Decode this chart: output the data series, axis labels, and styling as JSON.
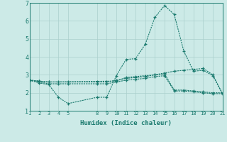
{
  "xlabel": "Humidex (Indice chaleur)",
  "bg_color": "#cceae7",
  "grid_color": "#aacfcc",
  "line_color": "#1a7a6e",
  "xlim": [
    1,
    21
  ],
  "ylim": [
    1,
    7
  ],
  "yticks": [
    1,
    2,
    3,
    4,
    5,
    6,
    7
  ],
  "xticks": [
    1,
    2,
    3,
    4,
    5,
    8,
    9,
    10,
    11,
    12,
    13,
    14,
    15,
    16,
    17,
    18,
    19,
    20,
    21
  ],
  "series": [
    {
      "x": [
        1,
        2,
        3,
        4,
        5,
        8,
        9,
        10,
        11,
        12,
        13,
        14,
        15,
        16,
        17,
        18,
        19,
        20,
        21
      ],
      "y": [
        2.7,
        2.55,
        2.45,
        1.75,
        1.4,
        1.75,
        1.75,
        2.95,
        3.85,
        3.9,
        4.7,
        6.2,
        6.85,
        6.35,
        4.3,
        3.2,
        3.25,
        2.95,
        1.95
      ]
    },
    {
      "x": [
        1,
        2,
        3,
        4,
        5,
        8,
        9,
        10,
        11,
        12,
        13,
        14,
        15,
        16,
        17,
        18,
        19,
        20,
        21
      ],
      "y": [
        2.7,
        2.6,
        2.5,
        2.5,
        2.5,
        2.5,
        2.5,
        2.6,
        2.7,
        2.75,
        2.8,
        2.9,
        2.95,
        2.1,
        2.1,
        2.05,
        2.0,
        1.95,
        1.95
      ]
    },
    {
      "x": [
        1,
        2,
        3,
        4,
        5,
        8,
        9,
        10,
        11,
        12,
        13,
        14,
        15,
        16,
        17,
        18,
        19,
        20,
        21
      ],
      "y": [
        2.7,
        2.65,
        2.6,
        2.6,
        2.6,
        2.6,
        2.6,
        2.7,
        2.8,
        2.85,
        2.9,
        3.0,
        3.05,
        2.15,
        2.15,
        2.1,
        2.05,
        2.0,
        2.0
      ]
    },
    {
      "x": [
        1,
        2,
        3,
        10,
        11,
        12,
        13,
        14,
        15,
        16,
        17,
        18,
        19,
        20,
        21
      ],
      "y": [
        2.7,
        2.65,
        2.6,
        2.65,
        2.85,
        2.9,
        2.95,
        3.0,
        3.1,
        3.2,
        3.25,
        3.3,
        3.35,
        3.0,
        1.95
      ]
    }
  ]
}
